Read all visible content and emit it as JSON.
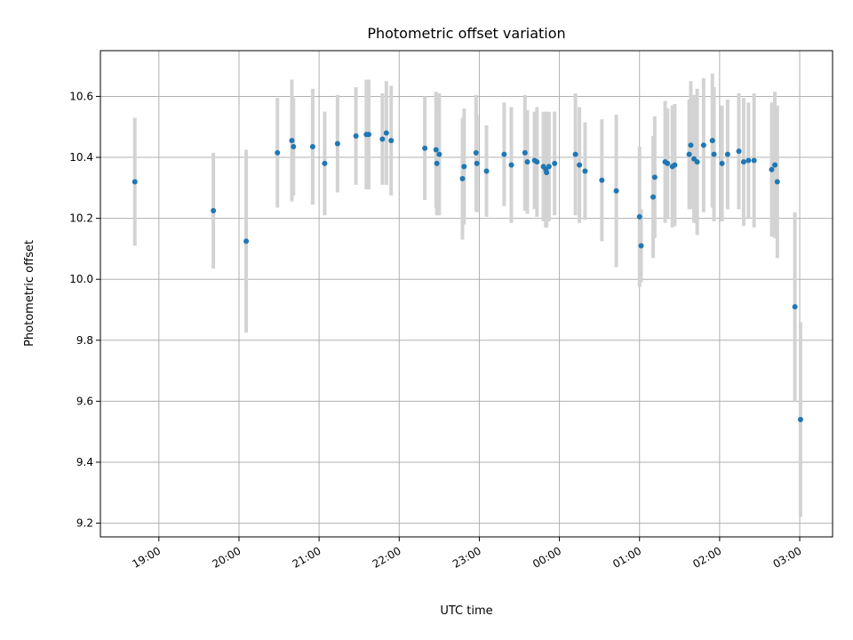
{
  "chart_data": {
    "type": "scatter",
    "title": "Photometric offset variation",
    "xlabel": "UTC time",
    "ylabel": "Photometric offset",
    "grid": true,
    "legend": "none",
    "x_tick_labels": [
      "19:00",
      "20:00",
      "21:00",
      "22:00",
      "23:00",
      "00:00",
      "01:00",
      "02:00",
      "03:00"
    ],
    "x_tick_hours": [
      19,
      20,
      21,
      22,
      23,
      24,
      25,
      26,
      27
    ],
    "y_ticks": [
      9.2,
      9.4,
      9.6,
      9.8,
      10.0,
      10.2,
      10.4,
      10.6
    ],
    "y_tick_labels": [
      "9.2",
      "9.4",
      "9.6",
      "9.8",
      "10.0",
      "10.2",
      "10.4",
      "10.6"
    ],
    "xlim_hours": [
      18.27,
      27.41
    ],
    "ylim": [
      9.155,
      10.75
    ],
    "colors": {
      "points": "#1f77b4",
      "errorbars": "#d3d3d3",
      "grid": "#b0b0b0"
    },
    "series": [
      {
        "x_hours": [
          18.7,
          19.68,
          20.09,
          20.48,
          20.66,
          20.68,
          20.92,
          21.07,
          21.23,
          21.46,
          21.59,
          21.62,
          21.79,
          21.84,
          21.9,
          22.32,
          22.46,
          22.47,
          22.5,
          22.79,
          22.81,
          22.96,
          22.97,
          23.09,
          23.31,
          23.4,
          23.57,
          23.6,
          23.69,
          23.72,
          23.8,
          23.83,
          23.84,
          23.87,
          23.94,
          24.2,
          24.25,
          24.32,
          24.53,
          24.71,
          25.0,
          25.02,
          25.17,
          25.19,
          25.32,
          25.35,
          25.41,
          25.44,
          25.62,
          25.64,
          25.68,
          25.72,
          25.8,
          25.91,
          25.93,
          26.03,
          26.1,
          26.24,
          26.3,
          26.36,
          26.43,
          26.65,
          26.69,
          26.72,
          26.94,
          27.01
        ],
        "y": [
          10.32,
          10.225,
          10.125,
          10.415,
          10.455,
          10.435,
          10.435,
          10.38,
          10.445,
          10.47,
          10.475,
          10.475,
          10.46,
          10.48,
          10.455,
          10.43,
          10.425,
          10.38,
          10.41,
          10.33,
          10.37,
          10.415,
          10.38,
          10.355,
          10.41,
          10.375,
          10.415,
          10.385,
          10.39,
          10.385,
          10.37,
          10.36,
          10.35,
          10.37,
          10.38,
          10.41,
          10.375,
          10.355,
          10.325,
          10.29,
          10.205,
          10.11,
          10.27,
          10.335,
          10.385,
          10.38,
          10.37,
          10.375,
          10.41,
          10.44,
          10.395,
          10.385,
          10.44,
          10.455,
          10.41,
          10.38,
          10.41,
          10.42,
          10.385,
          10.39,
          10.39,
          10.36,
          10.375,
          10.32,
          9.91,
          9.54
        ],
        "yerr": [
          0.21,
          0.19,
          0.3,
          0.18,
          0.2,
          0.16,
          0.19,
          0.17,
          0.16,
          0.16,
          0.18,
          0.18,
          0.15,
          0.17,
          0.18,
          0.17,
          0.19,
          0.17,
          0.2,
          0.2,
          0.19,
          0.19,
          0.16,
          0.15,
          0.17,
          0.19,
          0.19,
          0.17,
          0.16,
          0.18,
          0.18,
          0.19,
          0.18,
          0.18,
          0.17,
          0.2,
          0.19,
          0.16,
          0.2,
          0.25,
          0.23,
          0.12,
          0.2,
          0.2,
          0.2,
          0.18,
          0.2,
          0.2,
          0.18,
          0.21,
          0.21,
          0.24,
          0.22,
          0.22,
          0.22,
          0.19,
          0.18,
          0.19,
          0.21,
          0.19,
          0.22,
          0.22,
          0.24,
          0.25,
          0.31,
          0.32
        ]
      }
    ]
  }
}
